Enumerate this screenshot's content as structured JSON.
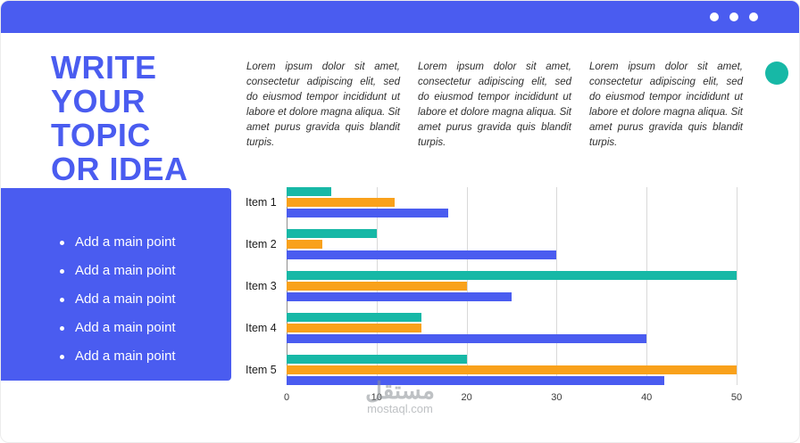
{
  "window": {
    "bar_color": "#4a5cf0",
    "dots": [
      "dot-1",
      "dot-2",
      "dot-3"
    ]
  },
  "title": {
    "lines": [
      "WRITE",
      "YOUR",
      "TOPIC",
      "OR IDEA"
    ]
  },
  "paragraphs": [
    "Lorem ipsum dolor sit amet, consectetur adipiscing elit, sed do eiusmod tempor incididunt ut labore et dolore magna aliqua. Sit amet purus gravida quis blandit turpis.",
    "Lorem ipsum dolor sit amet, consectetur adipiscing elit, sed do eiusmod tempor incididunt ut labore et dolore magna aliqua. Sit amet purus gravida quis blandit turpis.",
    "Lorem ipsum dolor sit amet, consectetur adipiscing elit, sed do eiusmod tempor incididunt ut labore et dolore magna aliqua. Sit amet purus gravida quis blandit turpis."
  ],
  "bullets": [
    "Add a main point",
    "Add a main point",
    "Add a main point",
    "Add a main point",
    "Add a main point"
  ],
  "watermark": {
    "arabic": "مستقل",
    "domain": "mostaql.com"
  },
  "colors": {
    "blue": "#4a5cf0",
    "teal": "#17b8a6",
    "orange": "#f9a11b"
  },
  "chart_data": {
    "type": "bar",
    "orientation": "horizontal",
    "title": "",
    "xlabel": "",
    "ylabel": "",
    "categories": [
      "Item 1",
      "Item 2",
      "Item 3",
      "Item 4",
      "Item 5"
    ],
    "series": [
      {
        "name": "teal-series",
        "color": "#17b8a6",
        "values": [
          5,
          10,
          50,
          15,
          20
        ]
      },
      {
        "name": "orange-series",
        "color": "#f9a11b",
        "values": [
          12,
          4,
          20,
          15,
          50
        ]
      },
      {
        "name": "blue-series",
        "color": "#4a5cf0",
        "values": [
          18,
          30,
          25,
          40,
          42
        ]
      }
    ],
    "xlim": [
      0,
      50
    ],
    "xticks": [
      0,
      10,
      20,
      30,
      40,
      50
    ],
    "grid": "vertical",
    "legend": "none"
  }
}
